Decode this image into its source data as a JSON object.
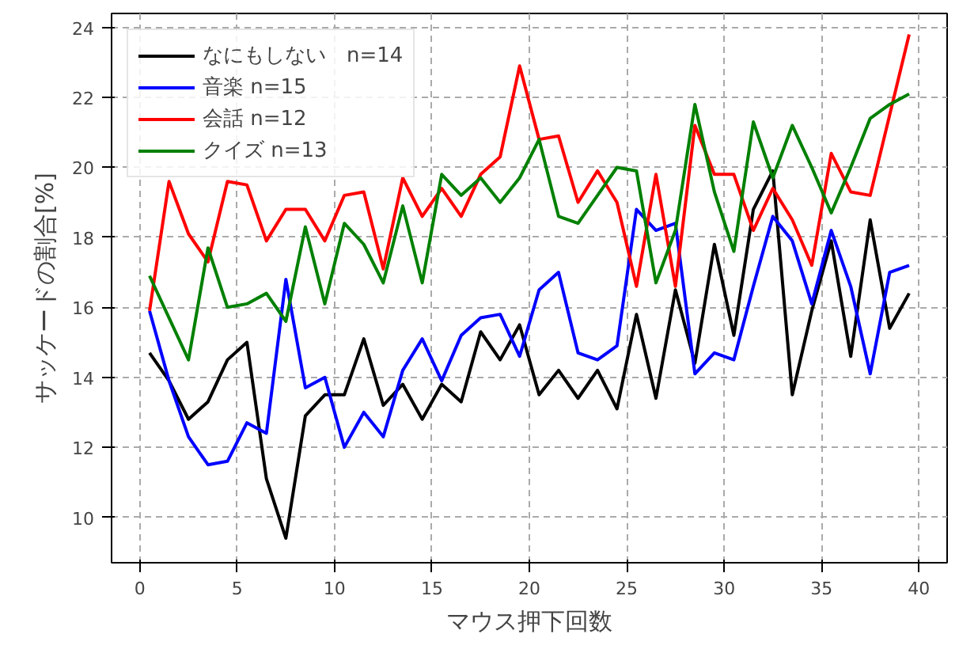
{
  "chart_data": {
    "type": "line",
    "xlabel": "マウス押下回数",
    "ylabel": "サッケードの割合[%]",
    "x": [
      0.5,
      1.5,
      2.5,
      3.5,
      4.5,
      5.5,
      6.5,
      7.5,
      8.5,
      9.5,
      10.5,
      11.5,
      12.5,
      13.5,
      14.5,
      15.5,
      16.5,
      17.5,
      18.5,
      19.5,
      20.5,
      21.5,
      22.5,
      23.5,
      24.5,
      25.5,
      26.5,
      27.5,
      28.5,
      29.5,
      30.5,
      31.5,
      32.5,
      33.5,
      34.5,
      35.5,
      36.5,
      37.5,
      38.5,
      39.5
    ],
    "series": [
      {
        "name": "なにもしない　n=14",
        "color": "#000000",
        "values": [
          14.7,
          13.9,
          12.8,
          13.3,
          14.5,
          15.0,
          11.1,
          9.4,
          12.9,
          13.5,
          13.5,
          15.1,
          13.2,
          13.8,
          12.8,
          13.8,
          13.3,
          15.3,
          14.5,
          15.5,
          13.5,
          14.2,
          13.4,
          14.2,
          13.1,
          15.8,
          13.4,
          16.5,
          14.4,
          17.8,
          15.2,
          18.8,
          19.9,
          13.5,
          15.9,
          17.9,
          14.6,
          18.5,
          15.4,
          16.4
        ]
      },
      {
        "name": "音楽 n=15",
        "color": "#0000ff",
        "values": [
          15.9,
          13.9,
          12.3,
          11.5,
          11.6,
          12.7,
          12.4,
          16.8,
          13.7,
          14.0,
          12.0,
          13.0,
          12.3,
          14.2,
          15.1,
          13.9,
          15.2,
          15.7,
          15.8,
          14.6,
          16.5,
          17.0,
          14.7,
          14.5,
          14.9,
          18.8,
          18.2,
          18.4,
          14.1,
          14.7,
          14.5,
          16.6,
          18.6,
          17.9,
          16.1,
          18.2,
          16.6,
          14.1,
          17.0,
          17.2
        ]
      },
      {
        "name": "会話 n=12",
        "color": "#ff0000",
        "values": [
          15.9,
          19.6,
          18.1,
          17.3,
          19.6,
          19.5,
          17.9,
          18.8,
          18.8,
          17.9,
          19.2,
          19.3,
          17.1,
          19.7,
          18.6,
          19.4,
          18.6,
          19.8,
          20.3,
          22.9,
          20.8,
          20.9,
          19.0,
          19.9,
          19.0,
          16.6,
          19.8,
          16.6,
          21.2,
          19.8,
          19.8,
          18.2,
          19.4,
          18.5,
          17.2,
          20.4,
          19.3,
          19.2,
          21.5,
          23.8
        ]
      },
      {
        "name": "クイズ n=13",
        "color": "#008000",
        "values": [
          16.9,
          15.7,
          14.5,
          17.7,
          16.0,
          16.1,
          16.4,
          15.6,
          18.3,
          16.1,
          18.4,
          17.8,
          16.7,
          18.9,
          16.7,
          19.8,
          19.2,
          19.7,
          19.0,
          19.7,
          20.8,
          18.6,
          18.4,
          19.2,
          20.0,
          19.9,
          16.7,
          18.2,
          21.8,
          19.3,
          17.6,
          21.3,
          19.7,
          21.2,
          20.0,
          18.7,
          20.0,
          21.4,
          21.8,
          22.1
        ]
      }
    ],
    "xlim": [
      -1.45,
      41.45
    ],
    "xticks": [
      0,
      5,
      10,
      15,
      20,
      25,
      30,
      35,
      40
    ],
    "ylim": [
      8.7,
      24.4
    ],
    "yticks": [
      10,
      12,
      14,
      16,
      18,
      20,
      22,
      24
    ],
    "grid": true,
    "legend": "top left",
    "marker": "none",
    "line_style": "solid"
  }
}
